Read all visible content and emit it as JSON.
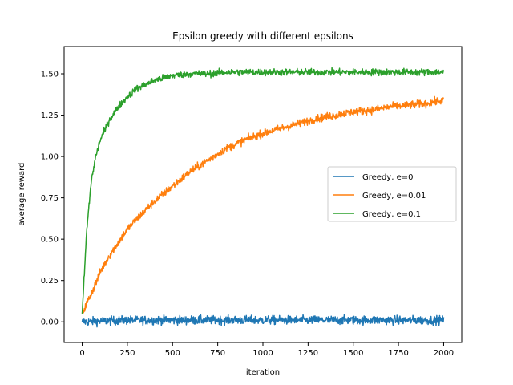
{
  "chart_data": {
    "type": "line",
    "title": "Epsilon greedy with different epsilons",
    "xlabel": "iteration",
    "ylabel": "average reward",
    "xlim": [
      -100,
      2100
    ],
    "ylim": [
      -0.125,
      1.665
    ],
    "xticks": [
      0,
      250,
      500,
      750,
      1000,
      1250,
      1500,
      1750,
      2000
    ],
    "yticks": [
      0.0,
      0.25,
      0.5,
      0.75,
      1.0,
      1.25,
      1.5
    ],
    "ytick_labels": [
      "0.00",
      "0.25",
      "0.50",
      "0.75",
      "1.00",
      "1.25",
      "1.50"
    ],
    "grid": false,
    "legend_position": "center-right",
    "series": [
      {
        "name": "Greedy, e=0",
        "color": "#1f77b4",
        "x": [
          0,
          250,
          500,
          750,
          1000,
          1250,
          1500,
          1750,
          2000
        ],
        "y": [
          0.0,
          0.01,
          0.01,
          0.01,
          0.01,
          0.01,
          0.01,
          0.01,
          0.01
        ]
      },
      {
        "name": "Greedy, e=0.01",
        "color": "#ff7f0e",
        "x": [
          0,
          50,
          100,
          150,
          200,
          250,
          300,
          400,
          500,
          600,
          700,
          800,
          900,
          1000,
          1100,
          1200,
          1300,
          1400,
          1500,
          1600,
          1700,
          1800,
          1900,
          2000
        ],
        "y": [
          0.05,
          0.17,
          0.3,
          0.4,
          0.48,
          0.56,
          0.62,
          0.73,
          0.82,
          0.91,
          0.98,
          1.05,
          1.1,
          1.14,
          1.17,
          1.2,
          1.23,
          1.25,
          1.27,
          1.28,
          1.3,
          1.31,
          1.32,
          1.34
        ]
      },
      {
        "name": "Greedy, e=0,1",
        "color": "#2ca02c",
        "x": [
          0,
          25,
          50,
          75,
          100,
          150,
          200,
          250,
          300,
          400,
          500,
          600,
          700,
          800,
          1000,
          1200,
          1400,
          1600,
          1800,
          2000
        ],
        "y": [
          0.05,
          0.55,
          0.85,
          1.0,
          1.1,
          1.22,
          1.3,
          1.36,
          1.41,
          1.46,
          1.49,
          1.5,
          1.5,
          1.51,
          1.51,
          1.51,
          1.51,
          1.51,
          1.51,
          1.51
        ]
      }
    ]
  }
}
